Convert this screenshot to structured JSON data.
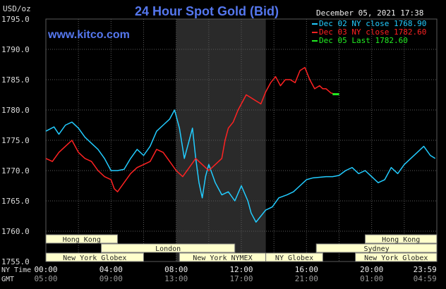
{
  "header": {
    "title": "24 Hour Spot Gold (Bid)",
    "site": "www.kitco.com",
    "datetime": "December 05, 2021 17:38",
    "unit": "USD/oz"
  },
  "legend": [
    {
      "text": "Dec 02 NY close 1768.90",
      "color": "#22ccff"
    },
    {
      "text": "Dec 03 NY close 1782.60",
      "color": "#ff2222"
    },
    {
      "text": "Dec 05 Last 1782.60",
      "color": "#22ee22"
    }
  ],
  "colors": {
    "background": "#000000",
    "grid": "#5a5a5a",
    "axis_text": "#dddddd",
    "title": "#5577ee",
    "site": "#5577ee",
    "band": "#2a2a2a",
    "market_box_fill": "#ffffcc",
    "market_box_border": "#777777",
    "market_box_text": "#222222"
  },
  "time_rows": [
    {
      "label": "NY Time",
      "ticks": [
        "00:00",
        "04:00",
        "08:00",
        "12:00",
        "16:00",
        "20:00",
        "23:59"
      ]
    },
    {
      "label": "GMT",
      "ticks": [
        "05:00",
        "09:00",
        "13:00",
        "17:00",
        "21:00",
        "01:00",
        "04:59"
      ]
    }
  ],
  "markets": [
    {
      "name": "Hong Kong",
      "start": 0,
      "end": 4.4
    },
    {
      "name": "Hong Kong",
      "start": 19.6,
      "end": 24
    },
    {
      "name": "London",
      "start": 3.4,
      "end": 11.6
    },
    {
      "name": "Sydney",
      "start": 16.6,
      "end": 24
    },
    {
      "name": "New York Globex",
      "start": 0,
      "end": 6.0
    },
    {
      "name": "New York NYMEX",
      "start": 8.2,
      "end": 13.5
    },
    {
      "name": "NY Globex",
      "start": 13.5,
      "end": 17.0
    },
    {
      "name": "New York Globex",
      "start": 19.0,
      "end": 24
    }
  ],
  "chart_data": {
    "type": "line",
    "title": "24 Hour Spot Gold (Bid)",
    "ylabel": "USD/oz",
    "xlabel": "NY Time",
    "ylim": [
      1755.0,
      1795.0
    ],
    "y_ticks": [
      "1795.0",
      "1790.0",
      "1785.0",
      "1780.0",
      "1775.0",
      "1770.0",
      "1765.0",
      "1760.0",
      "1755.0"
    ],
    "xlim": [
      0,
      24
    ],
    "highlight_band": [
      8.0,
      13.5
    ],
    "grid": true,
    "legend_position": "top-right",
    "series": [
      {
        "name": "Dec 02 NY close 1768.90",
        "color": "#22ccff",
        "x": [
          0,
          0.5,
          0.8,
          1.2,
          1.6,
          2.0,
          2.4,
          2.8,
          3.2,
          3.6,
          4.0,
          4.4,
          4.8,
          5.2,
          5.6,
          6.0,
          6.4,
          6.8,
          7.2,
          7.6,
          7.9,
          8.2,
          8.5,
          8.8,
          9.0,
          9.2,
          9.4,
          9.6,
          9.8,
          10.0,
          10.4,
          10.8,
          11.2,
          11.6,
          12.0,
          12.4,
          12.6,
          12.9,
          13.2,
          13.5,
          13.9,
          14.3,
          14.8,
          15.2,
          15.6,
          16.0,
          16.4,
          16.8,
          17.2,
          17.6,
          18.0,
          18.4,
          18.8,
          19.2,
          19.6,
          20.0,
          20.4,
          20.8,
          21.2,
          21.6,
          22.0,
          22.4,
          22.8,
          23.2,
          23.6,
          23.9
        ],
        "y": [
          1776.5,
          1777.2,
          1776.0,
          1777.5,
          1778.0,
          1777.0,
          1775.5,
          1774.5,
          1773.5,
          1772.0,
          1770.0,
          1770.0,
          1770.2,
          1772.0,
          1773.5,
          1772.5,
          1774.0,
          1776.5,
          1777.5,
          1778.5,
          1780.0,
          1777.0,
          1772.0,
          1775.0,
          1777.0,
          1772.0,
          1768.0,
          1765.5,
          1769.0,
          1771.0,
          1768.0,
          1766.0,
          1766.5,
          1765.0,
          1767.5,
          1765.0,
          1763.0,
          1761.5,
          1762.5,
          1763.5,
          1764.0,
          1765.5,
          1766.0,
          1766.5,
          1767.5,
          1768.5,
          1768.8,
          1768.9,
          1769.0,
          1769.0,
          1769.2,
          1770.0,
          1770.5,
          1769.5,
          1770.0,
          1769.0,
          1768.0,
          1768.5,
          1770.5,
          1769.5,
          1771.0,
          1772.0,
          1773.0,
          1774.0,
          1772.5,
          1772.0
        ]
      },
      {
        "name": "Dec 03 NY close 1782.60",
        "color": "#ff2222",
        "x": [
          0,
          0.4,
          0.8,
          1.2,
          1.6,
          2.0,
          2.4,
          2.8,
          3.2,
          3.6,
          4.0,
          4.2,
          4.4,
          4.8,
          5.2,
          5.6,
          6.0,
          6.4,
          6.8,
          7.2,
          7.6,
          8.0,
          8.4,
          8.8,
          9.2,
          9.6,
          10.0,
          10.4,
          10.8,
          11.0,
          11.2,
          11.5,
          11.8,
          12.0,
          12.3,
          12.6,
          12.9,
          13.2,
          13.5,
          13.8,
          14.1,
          14.4,
          14.7,
          15.0,
          15.3,
          15.6,
          15.9,
          16.2,
          16.5,
          16.8,
          17.0,
          17.2,
          17.5,
          17.8,
          18.0
        ],
        "y": [
          1772.0,
          1771.5,
          1773.0,
          1774.0,
          1775.0,
          1773.0,
          1772.0,
          1771.5,
          1770.0,
          1769.0,
          1768.5,
          1767.0,
          1766.5,
          1768.0,
          1769.5,
          1770.5,
          1771.0,
          1771.5,
          1773.5,
          1773.0,
          1771.5,
          1770.0,
          1769.0,
          1770.5,
          1772.0,
          1771.0,
          1770.0,
          1771.0,
          1772.0,
          1775.0,
          1777.0,
          1778.0,
          1780.0,
          1781.0,
          1782.5,
          1782.0,
          1781.5,
          1781.0,
          1783.0,
          1784.5,
          1785.5,
          1784.0,
          1785.0,
          1785.0,
          1784.5,
          1786.5,
          1787.0,
          1785.0,
          1783.5,
          1784.0,
          1783.5,
          1783.5,
          1782.8,
          1782.6,
          1782.6
        ]
      },
      {
        "name": "Dec 05 Last 1782.60",
        "color": "#22ee22",
        "x": [
          17.6,
          18.0
        ],
        "y": [
          1782.6,
          1782.6
        ]
      }
    ]
  }
}
